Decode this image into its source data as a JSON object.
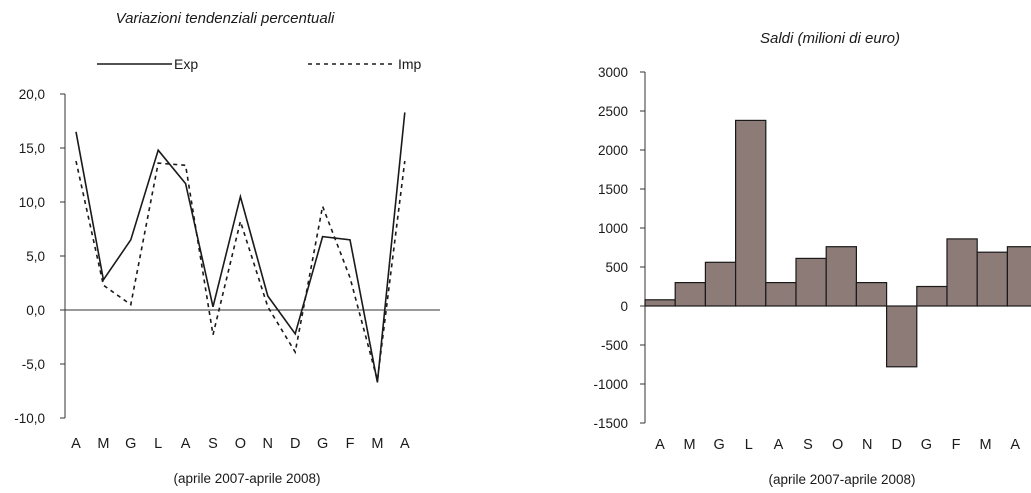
{
  "chart_data": [
    {
      "type": "line",
      "title": "Variazioni tendenziali percentuali",
      "xlabel": "(aprile 2007-aprile 2008)",
      "ylabel": "",
      "categories": [
        "A",
        "M",
        "G",
        "L",
        "A",
        "S",
        "O",
        "N",
        "D",
        "G",
        "F",
        "M",
        "A"
      ],
      "ylim": [
        -10,
        20
      ],
      "yticks": [
        "20,0",
        "15,0",
        "10,0",
        "5,0",
        "0,0",
        "-5,0",
        "-10,0"
      ],
      "legend_position": "top",
      "series": [
        {
          "name": "Exp",
          "style": "solid",
          "values": [
            16.5,
            2.8,
            6.5,
            14.8,
            11.7,
            0.3,
            10.5,
            1.3,
            -2.2,
            6.8,
            6.5,
            -6.7,
            18.3
          ]
        },
        {
          "name": "Imp",
          "style": "dashed",
          "values": [
            13.8,
            2.3,
            0.5,
            13.6,
            13.4,
            -2.3,
            8.2,
            0.3,
            -3.9,
            9.6,
            3.0,
            -6.5,
            13.8
          ]
        }
      ]
    },
    {
      "type": "bar",
      "title": "Saldi (milioni di euro)",
      "xlabel": "(aprile 2007-aprile 2008)",
      "ylabel": "",
      "categories": [
        "A",
        "M",
        "G",
        "L",
        "A",
        "S",
        "O",
        "N",
        "D",
        "G",
        "F",
        "M",
        "A"
      ],
      "ylim": [
        -1500,
        3000
      ],
      "yticks": [
        "3000",
        "2500",
        "2000",
        "1500",
        "1000",
        "500",
        "0",
        "-500",
        "-1000",
        "-1500"
      ],
      "bar_color": "#8c7b76",
      "values": [
        80,
        300,
        560,
        2380,
        300,
        610,
        760,
        300,
        -780,
        250,
        860,
        690,
        760
      ]
    }
  ]
}
